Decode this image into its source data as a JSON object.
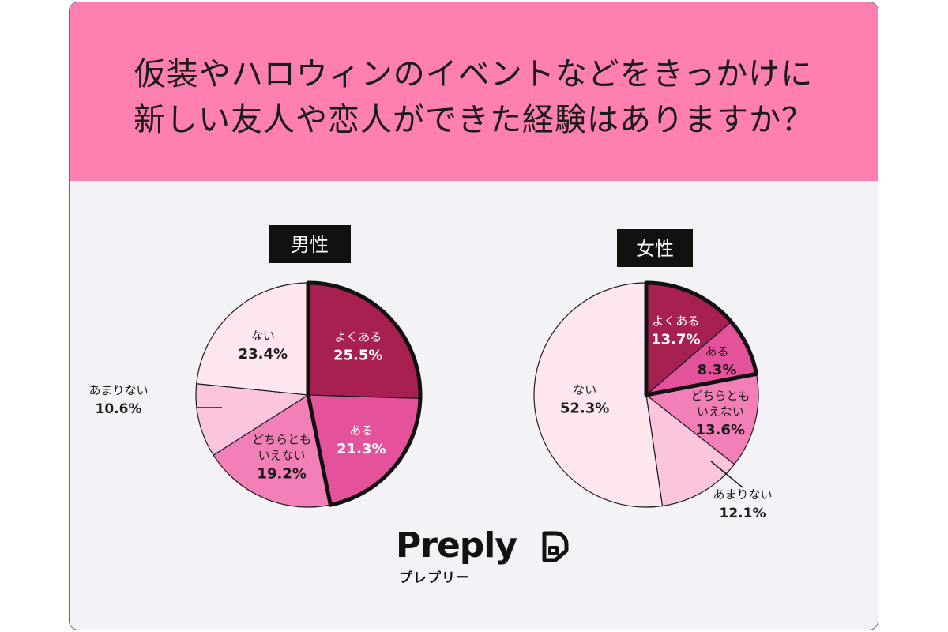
{
  "title_lines": [
    "仮装やハロウィンのイベントなどをきっかけに",
    "新しい友人や恋人ができた経験はありますか？"
  ],
  "chart_data": [
    {
      "type": "pie",
      "title": "男性",
      "slices": [
        {
          "label": "よくある",
          "value": 25.5,
          "display": "25.5%",
          "color": "#a81f52",
          "text_color": "#ffffff"
        },
        {
          "label": "ある",
          "value": 21.3,
          "display": "21.3%",
          "color": "#e4529b",
          "text_color": "#ffffff"
        },
        {
          "label": "どちらとも\nいえない",
          "value": 19.2,
          "display": "19.2%",
          "color": "#f37fb8",
          "text_color": "#1b1b1b"
        },
        {
          "label": "あまりない",
          "value": 10.6,
          "display": "10.6%",
          "color": "#fcc5de",
          "text_color": "#1b1b1b"
        },
        {
          "label": "ない",
          "value": 23.4,
          "display": "23.4%",
          "color": "#fde6f0",
          "text_color": "#1b1b1b"
        }
      ],
      "highlight": [
        "よくある",
        "ある"
      ]
    },
    {
      "type": "pie",
      "title": "女性",
      "slices": [
        {
          "label": "よくある",
          "value": 13.7,
          "display": "13.7%",
          "color": "#a81f52",
          "text_color": "#ffffff"
        },
        {
          "label": "ある",
          "value": 8.3,
          "display": "8.3%",
          "color": "#e4529b",
          "text_color": "#1b1b1b"
        },
        {
          "label": "どちらとも\nいえない",
          "value": 13.6,
          "display": "13.6%",
          "color": "#f37fb8",
          "text_color": "#1b1b1b"
        },
        {
          "label": "あまりない",
          "value": 12.1,
          "display": "12.1%",
          "color": "#fcc5de",
          "text_color": "#1b1b1b"
        },
        {
          "label": "ない",
          "value": 52.3,
          "display": "52.3%",
          "color": "#fde6f0",
          "text_color": "#1b1b1b"
        }
      ],
      "highlight": [
        "よくある",
        "ある"
      ]
    }
  ],
  "logo": {
    "word": "Preply",
    "sub": "プレプリー"
  },
  "colors": {
    "header": "#ff7fb0",
    "background": "#f3f2f7",
    "chip": "#111111"
  }
}
